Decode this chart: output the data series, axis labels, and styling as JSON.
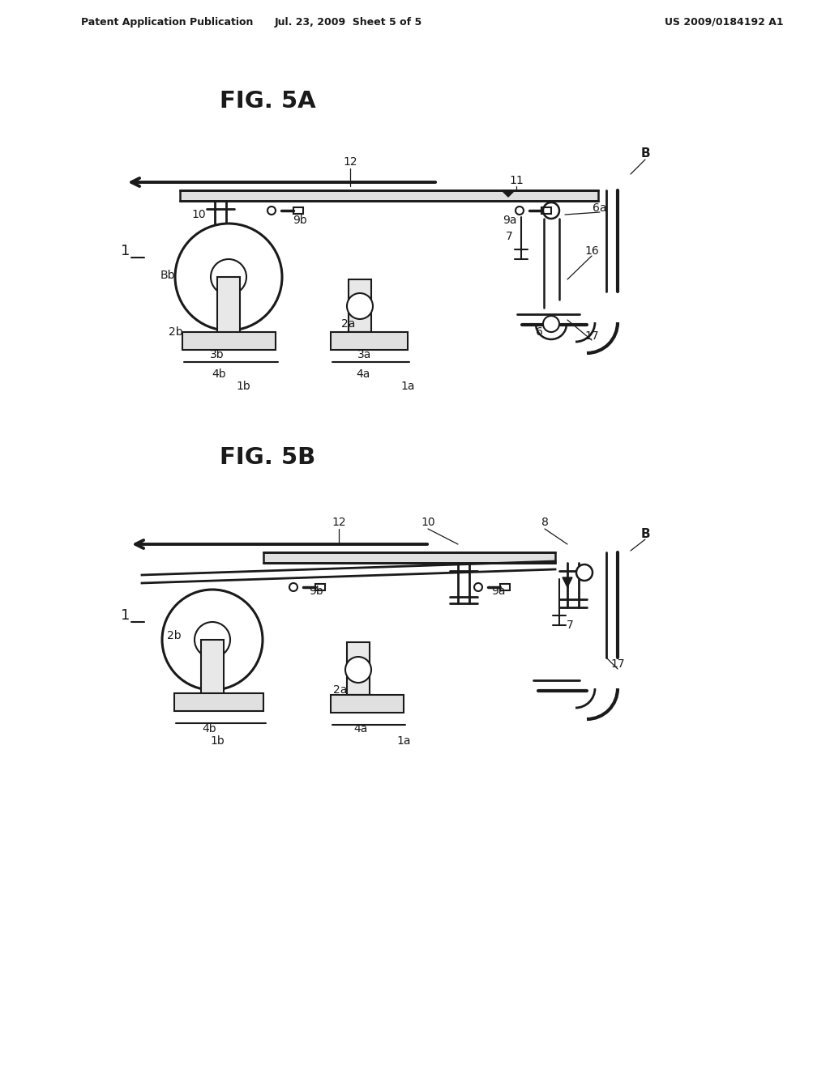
{
  "bg_color": "#ffffff",
  "line_color": "#1a1a1a",
  "header_left": "Patent Application Publication",
  "header_mid": "Jul. 23, 2009  Sheet 5 of 5",
  "header_right": "US 2009/0184192 A1",
  "fig5a_title": "FIG. 5A",
  "fig5b_title": "FIG. 5B"
}
